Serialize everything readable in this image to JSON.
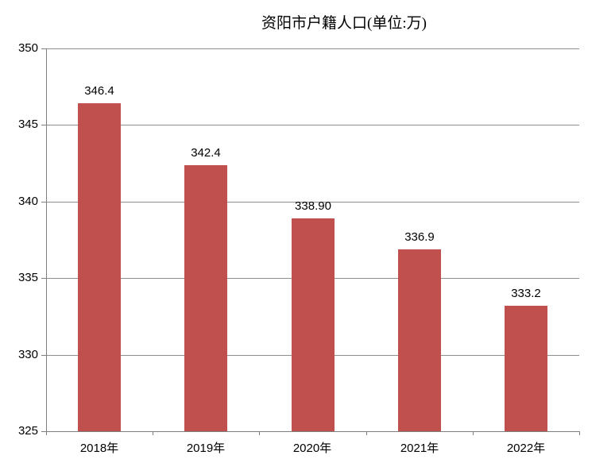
{
  "title": "资阳市户籍人口(单位:万)",
  "colors": {
    "bar": "#C0504D",
    "gridline": "#8e8e8e",
    "axis": "#7f7f7f",
    "text": "#000000",
    "background": "#ffffff"
  },
  "chart_data": {
    "type": "bar",
    "title": "资阳市户籍人口(单位:万)",
    "categories": [
      "2018年",
      "2019年",
      "2020年",
      "2021年",
      "2022年"
    ],
    "values": [
      346.4,
      342.4,
      338.9,
      336.9,
      333.2
    ],
    "data_labels": [
      "346.4",
      "342.4",
      "338.90",
      "336.9",
      "333.2"
    ],
    "xlabel": "",
    "ylabel": "",
    "ylim": [
      325,
      350
    ],
    "yticks": [
      325,
      330,
      335,
      340,
      345,
      350
    ],
    "ytick_labels": [
      "325",
      "330",
      "335",
      "340",
      "345",
      "350"
    ],
    "grid": true,
    "legend": "none",
    "bar_color": "#C0504D"
  }
}
